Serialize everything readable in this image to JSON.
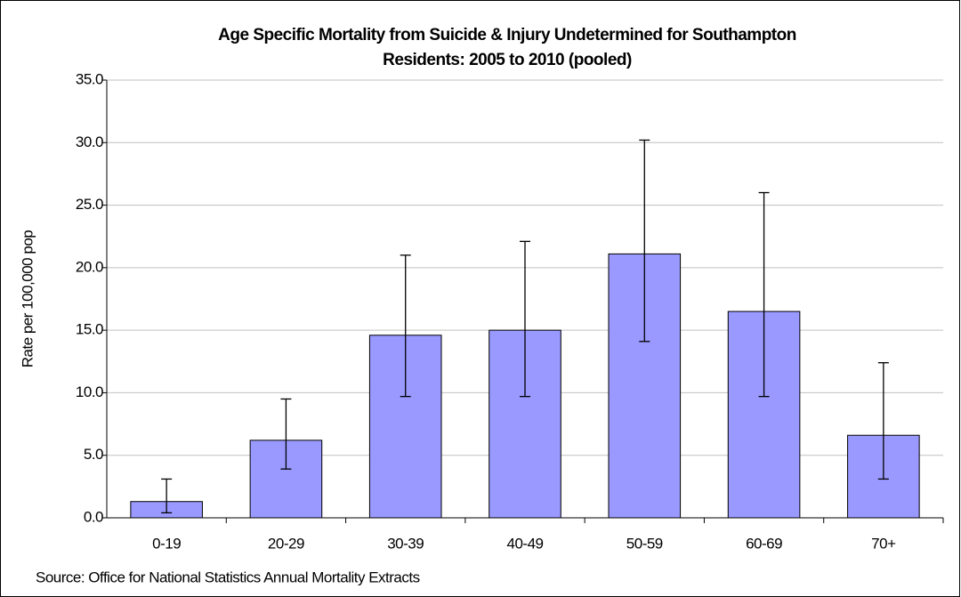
{
  "chart_data": {
    "type": "bar",
    "title": [
      "Age Specific Mortality from Suicide & Injury Undetermined for Southampton",
      "Residents: 2005 to 2010 (pooled)"
    ],
    "y_label": "Rate per 100,000 pop",
    "source": "Source: Office for National Statistics Annual Mortality Extracts",
    "categories": [
      "0-19",
      "20-29",
      "30-39",
      "40-49",
      "50-59",
      "60-69",
      "70+"
    ],
    "series": [
      {
        "color": "#9999ff",
        "values": [
          1.3,
          6.2,
          14.6,
          15.0,
          21.1,
          16.5,
          6.6
        ],
        "lower": [
          0.4,
          3.9,
          9.7,
          9.7,
          14.1,
          9.7,
          3.1
        ],
        "upper": [
          3.1,
          9.5,
          21.0,
          22.1,
          30.2,
          26.0,
          12.4
        ]
      }
    ],
    "ylim": [
      0,
      35
    ],
    "yticks": [
      {
        "value": 0,
        "label": "0.0"
      },
      {
        "value": 5,
        "label": "5.0"
      },
      {
        "value": 10,
        "label": "10.0"
      },
      {
        "value": 15,
        "label": "15.0"
      },
      {
        "value": 20,
        "label": "20.0"
      },
      {
        "value": 25,
        "label": "25.0"
      },
      {
        "value": 30,
        "label": "30.0"
      },
      {
        "value": 35,
        "label": "35.0"
      }
    ],
    "grid": true
  }
}
